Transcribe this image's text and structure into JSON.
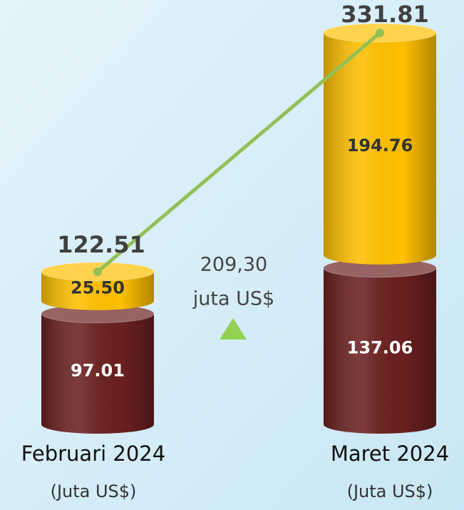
{
  "chart_data": {
    "type": "stacked-cylinder",
    "categories": [
      "Februari 2024",
      "Maret 2024"
    ],
    "unit_label": "(Juta US$)",
    "series": [
      {
        "color": "#6b2020",
        "values": [
          97.01,
          137.06
        ],
        "value_labels": [
          "97.01",
          "137.06"
        ]
      },
      {
        "color": "#ffc000",
        "values": [
          25.5,
          194.76
        ],
        "value_labels": [
          "25.50",
          "194.76"
        ]
      }
    ],
    "totals": [
      122.51,
      331.81
    ],
    "totals_color": "#92c057",
    "annotation": [
      "209,30",
      "juta US$"
    ],
    "annotation_color": "#92d050"
  }
}
